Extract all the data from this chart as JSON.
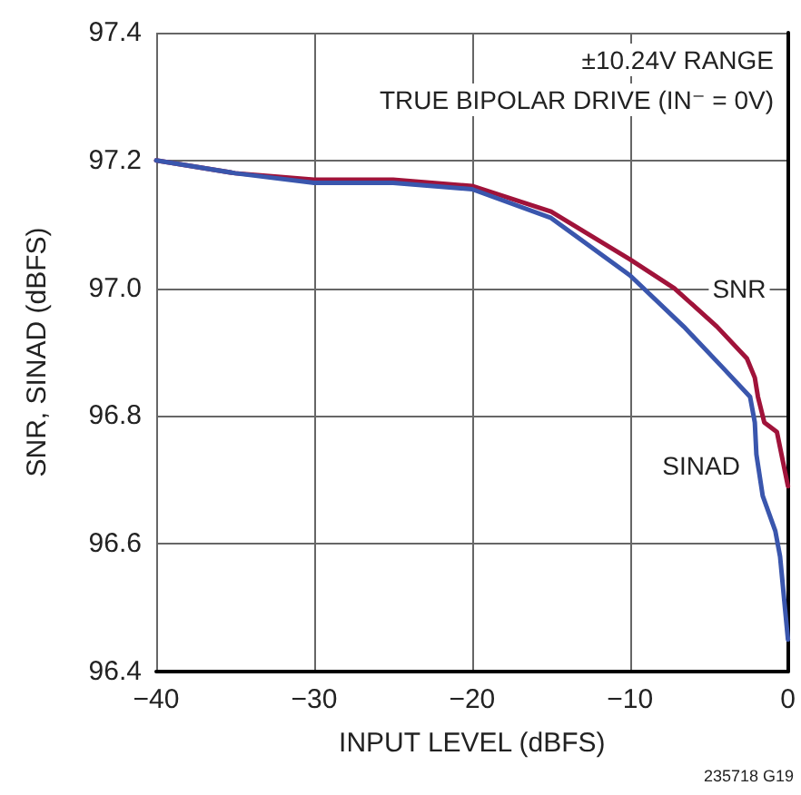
{
  "chart_data": {
    "type": "line",
    "xlabel": "INPUT LEVEL (dBFS)",
    "ylabel": "SNR, SINAD (dBFS)",
    "annotations": [
      "±10.24V RANGE",
      "TRUE BIPOLAR DRIVE (IN⁻ = 0V)",
      "235718 G19"
    ],
    "series": [
      {
        "name": "SNR",
        "color": "#a0133a",
        "x": [
          -40,
          -35,
          -30,
          -25,
          -20,
          -15,
          -10,
          -7.2,
          -4.5,
          -2.6,
          -2.1,
          -1.9,
          -1.5,
          -0.7,
          0
        ],
        "values": [
          97.2,
          97.18,
          97.17,
          97.17,
          97.16,
          97.12,
          97.045,
          97.0,
          96.94,
          96.89,
          96.86,
          96.83,
          96.79,
          96.775,
          96.69
        ]
      },
      {
        "name": "SINAD",
        "color": "#3a56ad",
        "x": [
          -40,
          -35,
          -30,
          -25,
          -20,
          -15,
          -10,
          -6.6,
          -4.1,
          -2.4,
          -2.1,
          -2.0,
          -1.6,
          -0.8,
          -0.5,
          0
        ],
        "values": [
          97.2,
          97.18,
          97.165,
          97.165,
          97.155,
          97.11,
          97.02,
          96.94,
          96.875,
          96.83,
          96.79,
          96.74,
          96.675,
          96.62,
          96.58,
          96.45
        ]
      }
    ],
    "xlim": [
      -40,
      0
    ],
    "xticks": [
      {
        "value": -40,
        "label": "−40"
      },
      {
        "value": -30,
        "label": "−30"
      },
      {
        "value": -20,
        "label": "−20"
      },
      {
        "value": -10,
        "label": "−10"
      },
      0
    ],
    "ylim": [
      96.4,
      97.4
    ],
    "yticks": [
      96.4,
      96.6,
      96.8,
      {
        "value": 97,
        "label": "97.0"
      },
      97.2,
      97.4
    ],
    "grid": true,
    "marker": "none",
    "line_style": "solid"
  }
}
